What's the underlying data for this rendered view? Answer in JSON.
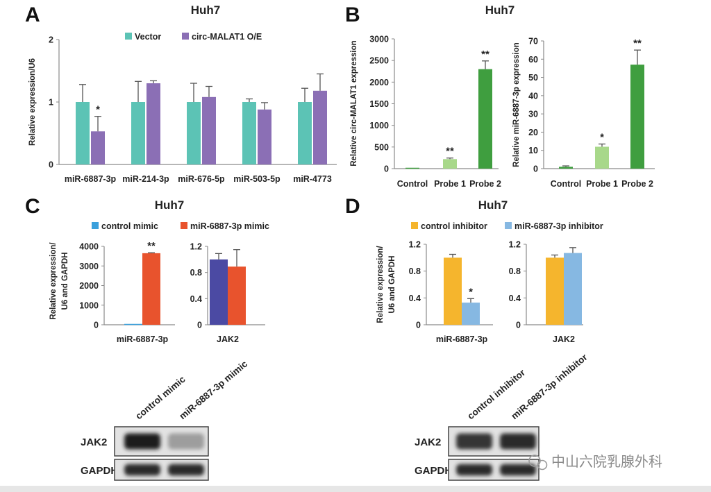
{
  "figure": {
    "panel_letters": [
      "A",
      "B",
      "C",
      "D"
    ],
    "watermark": "中山六院乳腺外科"
  },
  "colors": {
    "vector": "#5cc3b5",
    "circ": "#8b6fb5",
    "probe1": "#a8d88a",
    "probe2": "#3f9e3f",
    "control_mimic": "#3aa0dc",
    "mimic": "#e8532d",
    "jak2_control_mimic": "#4b4aa3",
    "control_inhibitor": "#f5b52d",
    "inhibitor": "#86b8e2",
    "axis": "#8a8a8a",
    "text": "#222222"
  },
  "chart_data": [
    {
      "id": "A",
      "type": "bar",
      "title": "Huh7",
      "ylabel": "Relative expression/U6",
      "ylim": [
        0,
        2
      ],
      "yticks": [
        0,
        1,
        2
      ],
      "categories": [
        "miR-6887-3p",
        "miR-214-3p",
        "miR-676-5p",
        "miR-503-5p",
        "miR-4773"
      ],
      "series": [
        {
          "name": "Vector",
          "values": [
            1.0,
            1.0,
            1.0,
            1.0,
            1.0
          ],
          "errors": [
            0.28,
            0.33,
            0.3,
            0.05,
            0.22
          ]
        },
        {
          "name": "circ-MALAT1 O/E",
          "values": [
            0.53,
            1.3,
            1.08,
            0.88,
            1.18
          ],
          "errors": [
            0.24,
            0.04,
            0.17,
            0.11,
            0.27
          ]
        }
      ],
      "annotations": [
        {
          "category": 0,
          "series": 1,
          "text": "*"
        }
      ],
      "legend": "top"
    },
    {
      "id": "B1",
      "type": "bar",
      "title": "Huh7",
      "ylabel": "Relative circ-MALAT1 expression",
      "ylim": [
        0,
        3000
      ],
      "yticks": [
        0,
        500,
        1000,
        1500,
        2000,
        2500,
        3000
      ],
      "categories": [
        "Control",
        "Probe 1",
        "Probe 2"
      ],
      "values": [
        1,
        220,
        2300
      ],
      "errors": [
        0,
        25,
        190
      ],
      "annotations": [
        {
          "category": 1,
          "text": "**"
        },
        {
          "category": 2,
          "text": "**"
        }
      ]
    },
    {
      "id": "B2",
      "type": "bar",
      "title": "",
      "ylabel": "Relative miR-6887-3p expression",
      "ylim": [
        0,
        70
      ],
      "yticks": [
        0,
        10,
        20,
        30,
        40,
        50,
        60,
        70
      ],
      "categories": [
        "Control",
        "Probe 1",
        "Probe 2"
      ],
      "values": [
        1,
        12,
        57
      ],
      "errors": [
        0.5,
        1.5,
        8
      ],
      "annotations": [
        {
          "category": 1,
          "text": "*"
        },
        {
          "category": 2,
          "text": "**"
        }
      ]
    },
    {
      "id": "C1",
      "type": "bar",
      "title": "Huh7",
      "ylabel": "Relative expression/ U6 and GAPDH",
      "ylim": [
        0,
        4000
      ],
      "yticks": [
        0,
        1000,
        2000,
        3000,
        4000
      ],
      "categories": [
        "miR-6887-3p"
      ],
      "series": [
        {
          "name": "control mimic",
          "values": [
            1
          ],
          "errors": [
            0
          ]
        },
        {
          "name": "miR-6887-3p mimic",
          "values": [
            3650
          ],
          "errors": [
            25
          ]
        }
      ],
      "annotations": [
        {
          "category": 0,
          "series": 1,
          "text": "**"
        }
      ],
      "legend": "top"
    },
    {
      "id": "C2",
      "type": "bar",
      "title": "",
      "ylim": [
        0,
        1.2
      ],
      "yticks": [
        "0",
        "0.4",
        "0.8",
        "1.2"
      ],
      "categories": [
        "JAK2"
      ],
      "series": [
        {
          "name": "control mimic",
          "values": [
            1.0
          ],
          "errors": [
            0.09
          ]
        },
        {
          "name": "miR-6887-3p mimic",
          "values": [
            0.89
          ],
          "errors": [
            0.26
          ]
        }
      ]
    },
    {
      "id": "D1",
      "type": "bar",
      "title": "Huh7",
      "ylabel": "Relative expression/ U6 and GAPDH",
      "ylim": [
        0,
        1.2
      ],
      "yticks": [
        "0",
        "0.4",
        "0.8",
        "1.2"
      ],
      "categories": [
        "miR-6887-3p"
      ],
      "series": [
        {
          "name": "control inhibitor",
          "values": [
            1.0
          ],
          "errors": [
            0.05
          ]
        },
        {
          "name": "miR-6887-3p inhibitor",
          "values": [
            0.33
          ],
          "errors": [
            0.06
          ]
        }
      ],
      "annotations": [
        {
          "category": 0,
          "series": 1,
          "text": "*"
        }
      ],
      "legend": "top"
    },
    {
      "id": "D2",
      "type": "bar",
      "title": "",
      "ylim": [
        0,
        1.2
      ],
      "yticks": [
        "0",
        "0.4",
        "0.8",
        "1.2"
      ],
      "categories": [
        "JAK2"
      ],
      "series": [
        {
          "name": "control inhibitor",
          "values": [
            1.0
          ],
          "errors": [
            0.04
          ]
        },
        {
          "name": "miR-6887-3p inhibitor",
          "values": [
            1.07
          ],
          "errors": [
            0.08
          ]
        }
      ]
    }
  ],
  "blots": {
    "C": {
      "lanes": [
        "control mimic",
        "miR-6887-3p mimic"
      ],
      "rows": [
        {
          "label": "JAK2",
          "intensity": [
            0.95,
            0.35
          ]
        },
        {
          "label": "GAPDH",
          "intensity": [
            0.9,
            0.9
          ]
        }
      ]
    },
    "D": {
      "lanes": [
        "control inhibitor",
        "miR-6887-3p inhibitor"
      ],
      "rows": [
        {
          "label": "JAK2",
          "intensity": [
            0.85,
            0.9
          ]
        },
        {
          "label": "GAPDH",
          "intensity": [
            0.9,
            0.9
          ]
        }
      ]
    }
  }
}
